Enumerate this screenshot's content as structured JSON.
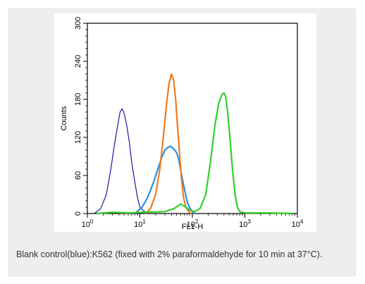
{
  "chart_data": {
    "type": "line",
    "title": "",
    "xlabel": "FL1-H",
    "ylabel": "Counts",
    "x_scale": "log",
    "xlim": [
      1,
      10000
    ],
    "ylim": [
      0,
      300
    ],
    "x_ticks": [
      {
        "value": 1,
        "base": "10",
        "exp": "0"
      },
      {
        "value": 10,
        "base": "10",
        "exp": "1"
      },
      {
        "value": 100,
        "base": "10",
        "exp": "2"
      },
      {
        "value": 1000,
        "base": "10",
        "exp": "3"
      },
      {
        "value": 10000,
        "base": "10",
        "exp": "4"
      }
    ],
    "y_ticks": [
      0,
      60,
      120,
      180,
      240,
      300
    ],
    "grid": false,
    "legend": "none",
    "series": [
      {
        "color": "#1a1a9e",
        "x": [
          1.35,
          1.8,
          2.3,
          2.8,
          3.3,
          3.8,
          4.2,
          4.6,
          5.0,
          5.6,
          6.3,
          7.0,
          8.0,
          9.0,
          10.0,
          11.5,
          13.0,
          15.0
        ],
        "y": [
          0,
          8,
          30,
          70,
          110,
          140,
          160,
          165,
          158,
          140,
          112,
          80,
          50,
          25,
          10,
          5,
          2,
          0
        ]
      },
      {
        "color": "#2b8fe0",
        "x": [
          8,
          11,
          14,
          18,
          22,
          26,
          30,
          34,
          38,
          42,
          46,
          50,
          55,
          62,
          70,
          80,
          90,
          100,
          110
        ],
        "y": [
          0,
          10,
          25,
          48,
          70,
          88,
          100,
          104,
          106,
          104,
          100,
          96,
          85,
          62,
          40,
          18,
          8,
          3,
          0
        ]
      },
      {
        "color": "#f07a20",
        "x": [
          13,
          16,
          20,
          24,
          28,
          32,
          36,
          40,
          44,
          48,
          52,
          57,
          62,
          68,
          75,
          85,
          95
        ],
        "y": [
          0,
          8,
          30,
          70,
          120,
          170,
          205,
          220,
          210,
          180,
          140,
          95,
          55,
          25,
          10,
          3,
          0
        ]
      },
      {
        "color": "#30d028",
        "x": [
          1.5,
          3,
          6,
          12,
          30,
          45,
          60,
          75,
          90,
          110,
          140,
          180,
          220,
          270,
          320,
          370,
          400,
          430,
          470,
          520,
          580,
          650,
          720,
          800,
          1000,
          3000,
          8000
        ],
        "y": [
          0,
          2,
          1,
          2,
          3,
          8,
          15,
          10,
          5,
          3,
          8,
          30,
          80,
          140,
          175,
          188,
          190,
          185,
          160,
          120,
          70,
          30,
          10,
          3,
          1,
          1,
          0
        ]
      }
    ]
  },
  "caption": "Blank control(blue):K562 (fixed with 2% paraformaldehyde for 10 min at 37°C)."
}
